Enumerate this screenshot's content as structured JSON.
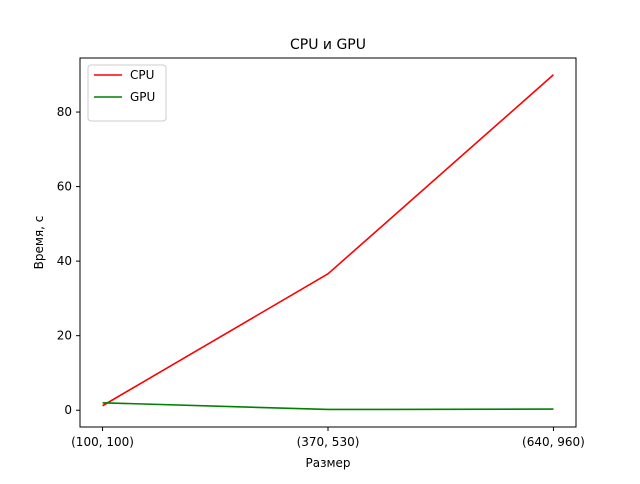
{
  "chart_data": {
    "type": "line",
    "title": "CPU и GPU",
    "xlabel": "Размер",
    "ylabel": "Время, с",
    "categories": [
      "(100, 100)",
      "(370, 530)",
      "(640, 960)"
    ],
    "ylim": [
      -4.5,
      94.5
    ],
    "yticks": [
      0,
      20,
      40,
      60,
      80
    ],
    "grid": false,
    "legend_position": "top-left",
    "series": [
      {
        "name": "CPU",
        "color": "#ff0000",
        "values": [
          1.2,
          36.6,
          90.0
        ]
      },
      {
        "name": "GPU",
        "color": "#008000",
        "values": [
          2.0,
          0.2,
          0.3
        ]
      }
    ]
  }
}
